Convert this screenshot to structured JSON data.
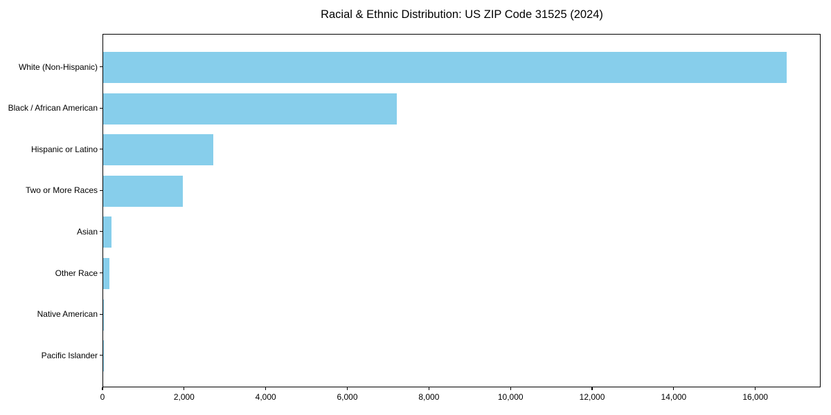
{
  "chart_data": {
    "type": "bar",
    "orientation": "horizontal",
    "title": "Racial & Ethnic Distribution: US ZIP Code 31525 (2024)",
    "categories": [
      "White (Non-Hispanic)",
      "Black / African American",
      "Hispanic or Latino",
      "Two or More Races",
      "Asian",
      "Other Race",
      "Native American",
      "Pacific Islander"
    ],
    "values": [
      16750,
      7200,
      2690,
      1950,
      210,
      160,
      20,
      10
    ],
    "xlabel": "",
    "ylabel": "",
    "xlim": [
      0,
      17600
    ],
    "x_ticks": [
      0,
      2000,
      4000,
      6000,
      8000,
      10000,
      12000,
      14000,
      16000
    ],
    "x_tick_labels": [
      "0",
      "2,000",
      "4,000",
      "6,000",
      "8,000",
      "10,000",
      "12,000",
      "14,000",
      "16,000"
    ],
    "bar_color": "#87CEEB",
    "frame_color": "#000000",
    "background_color": "#FFFFFF",
    "grid": false,
    "legend": null
  }
}
